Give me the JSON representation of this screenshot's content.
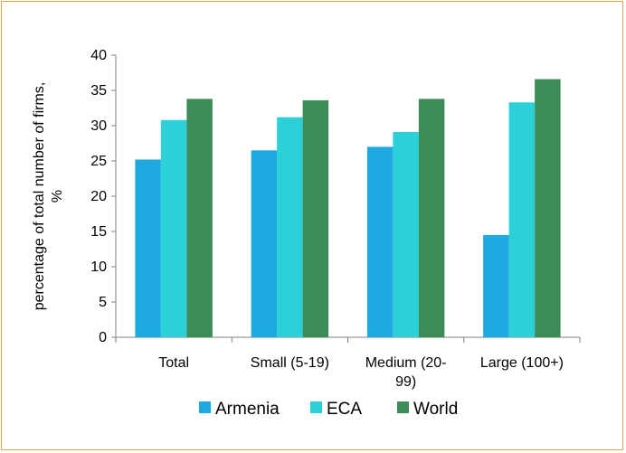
{
  "chart_data": {
    "type": "bar",
    "categories": [
      [
        "Total"
      ],
      [
        "Small (5-19)"
      ],
      [
        "Medium (20-",
        "99)"
      ],
      [
        "Large (100+)"
      ]
    ],
    "series": [
      {
        "name": "Armenia",
        "color": "#1fa9e1",
        "values": [
          25.2,
          26.5,
          27.0,
          14.5
        ]
      },
      {
        "name": "ECA",
        "color": "#2bd0d8",
        "values": [
          30.8,
          31.2,
          29.1,
          33.3
        ]
      },
      {
        "name": "World",
        "color": "#3d8b56",
        "values": [
          33.8,
          33.6,
          33.8,
          36.6
        ]
      }
    ],
    "ylabel": [
      "percentage of total number of firms,",
      "%"
    ],
    "ylim": [
      0,
      40
    ],
    "yticks": [
      0,
      5,
      10,
      15,
      20,
      25,
      30,
      35,
      40
    ],
    "legend": "bottom",
    "grid": false
  }
}
